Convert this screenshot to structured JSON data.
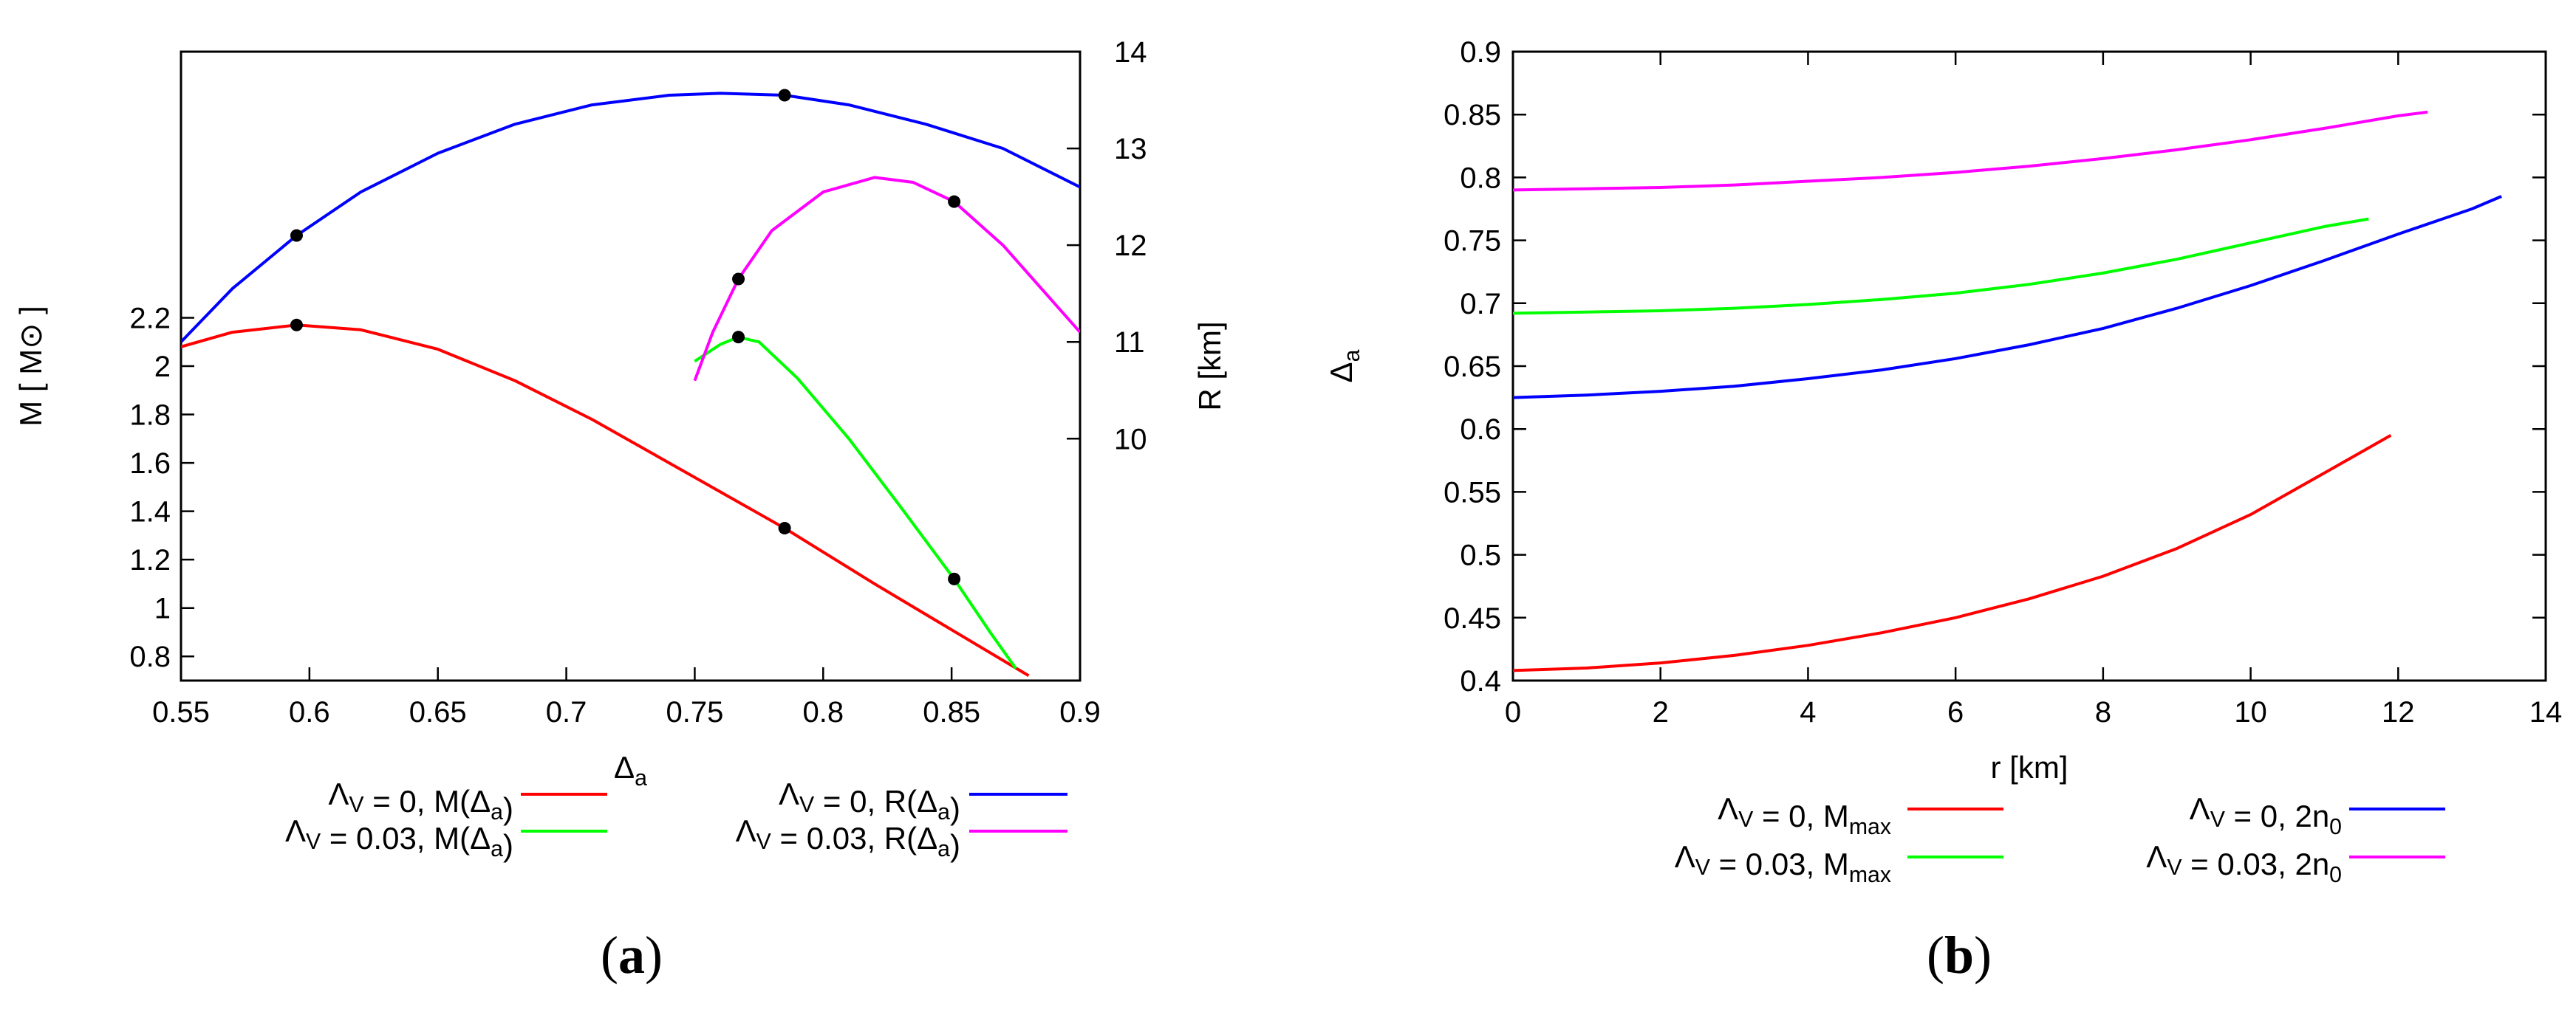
{
  "panels": [
    {
      "label": "(a)",
      "label_bold": "a"
    },
    {
      "label": "(b)",
      "label_bold": "b"
    }
  ],
  "colors": {
    "red": "#ff0000",
    "green": "#00ff00",
    "blue": "#0000ff",
    "magenta": "#ff00ff",
    "frame": "#000000"
  },
  "chart_data": [
    {
      "type": "line",
      "panel": "(a)",
      "xlabel": "Δa",
      "ylabel_left": "M [ M⊙ ]",
      "ylabel_right": "R [km]",
      "xlim": [
        0.55,
        0.9
      ],
      "ylim_left": [
        0.7,
        3.3
      ],
      "ylim_right": [
        7.5,
        14
      ],
      "xticks": [
        "0.55",
        "0.6",
        "0.65",
        "0.7",
        "0.75",
        "0.8",
        "0.85",
        "0.9"
      ],
      "yticks_left": [
        "0.8",
        "1",
        "1.2",
        "1.4",
        "1.6",
        "1.8",
        "2",
        "2.2"
      ],
      "yticks_right": [
        "10",
        "11",
        "12",
        "13",
        "14"
      ],
      "legend": [
        "ΛV = 0, M(Δa)",
        "ΛV = 0.03, M(Δa)",
        "ΛV = 0, R(Δa)",
        "ΛV = 0.03, R(Δa)"
      ],
      "series": [
        {
          "name": "ΛV = 0, M(Δa)",
          "axis": "left",
          "color": "#ff0000",
          "x": [
            0.55,
            0.57,
            0.595,
            0.62,
            0.65,
            0.68,
            0.71,
            0.74,
            0.77,
            0.785,
            0.82,
            0.85,
            0.88
          ],
          "y": [
            2.08,
            2.14,
            2.17,
            2.15,
            2.07,
            1.94,
            1.78,
            1.6,
            1.42,
            1.33,
            1.1,
            0.91,
            0.72
          ],
          "markers": [
            [
              0.595,
              2.17
            ],
            [
              0.785,
              1.33
            ]
          ]
        },
        {
          "name": "ΛV = 0.03, M(Δa)",
          "axis": "left",
          "color": "#00ff00",
          "x": [
            0.75,
            0.76,
            0.767,
            0.775,
            0.79,
            0.81,
            0.83,
            0.851,
            0.865,
            0.875
          ],
          "y": [
            2.02,
            2.09,
            2.12,
            2.1,
            1.95,
            1.7,
            1.42,
            1.12,
            0.9,
            0.75
          ],
          "markers": [
            [
              0.767,
              2.12
            ],
            [
              0.851,
              1.12
            ]
          ]
        },
        {
          "name": "ΛV = 0, R(Δa)",
          "axis": "right",
          "color": "#0000ff",
          "x": [
            0.55,
            0.57,
            0.595,
            0.62,
            0.65,
            0.68,
            0.71,
            0.74,
            0.76,
            0.785,
            0.81,
            0.84,
            0.87,
            0.9
          ],
          "y": [
            11.0,
            11.55,
            12.1,
            12.55,
            12.95,
            13.25,
            13.45,
            13.55,
            13.57,
            13.55,
            13.45,
            13.25,
            13.0,
            12.6
          ],
          "markers": [
            [
              0.595,
              12.1
            ],
            [
              0.785,
              13.55
            ]
          ]
        },
        {
          "name": "ΛV = 0.03, R(Δa)",
          "axis": "right",
          "color": "#ff00ff",
          "x": [
            0.75,
            0.757,
            0.767,
            0.78,
            0.8,
            0.82,
            0.835,
            0.851,
            0.87,
            0.9
          ],
          "y": [
            10.6,
            11.1,
            11.65,
            12.15,
            12.55,
            12.7,
            12.65,
            12.45,
            12.0,
            11.1
          ],
          "markers": [
            [
              0.767,
              11.65
            ],
            [
              0.851,
              12.45
            ]
          ]
        }
      ]
    },
    {
      "type": "line",
      "panel": "(b)",
      "xlabel": "r [km]",
      "ylabel": "Δa",
      "xlim": [
        0,
        14
      ],
      "ylim": [
        0.4,
        0.9
      ],
      "xticks": [
        "0",
        "2",
        "4",
        "6",
        "8",
        "10",
        "12",
        "14"
      ],
      "yticks": [
        "0.4",
        "0.45",
        "0.5",
        "0.55",
        "0.6",
        "0.65",
        "0.7",
        "0.75",
        "0.8",
        "0.85",
        "0.9"
      ],
      "legend": [
        "ΛV = 0, Mmax",
        "ΛV = 0.03, Mmax",
        "ΛV = 0, 2n0",
        "ΛV = 0.03, 2n0"
      ],
      "series": [
        {
          "name": "ΛV = 0, Mmax",
          "color": "#ff0000",
          "x": [
            0,
            1,
            2,
            3,
            4,
            5,
            6,
            7,
            8,
            9,
            10,
            11,
            11.9
          ],
          "y": [
            0.408,
            0.41,
            0.414,
            0.42,
            0.428,
            0.438,
            0.45,
            0.465,
            0.483,
            0.505,
            0.532,
            0.565,
            0.595
          ]
        },
        {
          "name": "ΛV = 0.03, Mmax",
          "color": "#00ff00",
          "x": [
            0,
            1,
            2,
            3,
            4,
            5,
            6,
            7,
            8,
            9,
            10,
            11,
            11.6
          ],
          "y": [
            0.692,
            0.693,
            0.694,
            0.696,
            0.699,
            0.703,
            0.708,
            0.715,
            0.724,
            0.735,
            0.748,
            0.761,
            0.767
          ]
        },
        {
          "name": "ΛV = 0, 2n0",
          "color": "#0000ff",
          "x": [
            0,
            1,
            2,
            3,
            4,
            5,
            6,
            7,
            8,
            9,
            10,
            11,
            12,
            13,
            13.4
          ],
          "y": [
            0.625,
            0.627,
            0.63,
            0.634,
            0.64,
            0.647,
            0.656,
            0.667,
            0.68,
            0.696,
            0.714,
            0.734,
            0.755,
            0.775,
            0.785
          ]
        },
        {
          "name": "ΛV = 0.03, 2n0",
          "color": "#ff00ff",
          "x": [
            0,
            1,
            2,
            3,
            4,
            5,
            6,
            7,
            8,
            9,
            10,
            11,
            12,
            12.4
          ],
          "y": [
            0.79,
            0.791,
            0.792,
            0.794,
            0.797,
            0.8,
            0.804,
            0.809,
            0.815,
            0.822,
            0.83,
            0.839,
            0.849,
            0.852
          ]
        }
      ]
    }
  ]
}
